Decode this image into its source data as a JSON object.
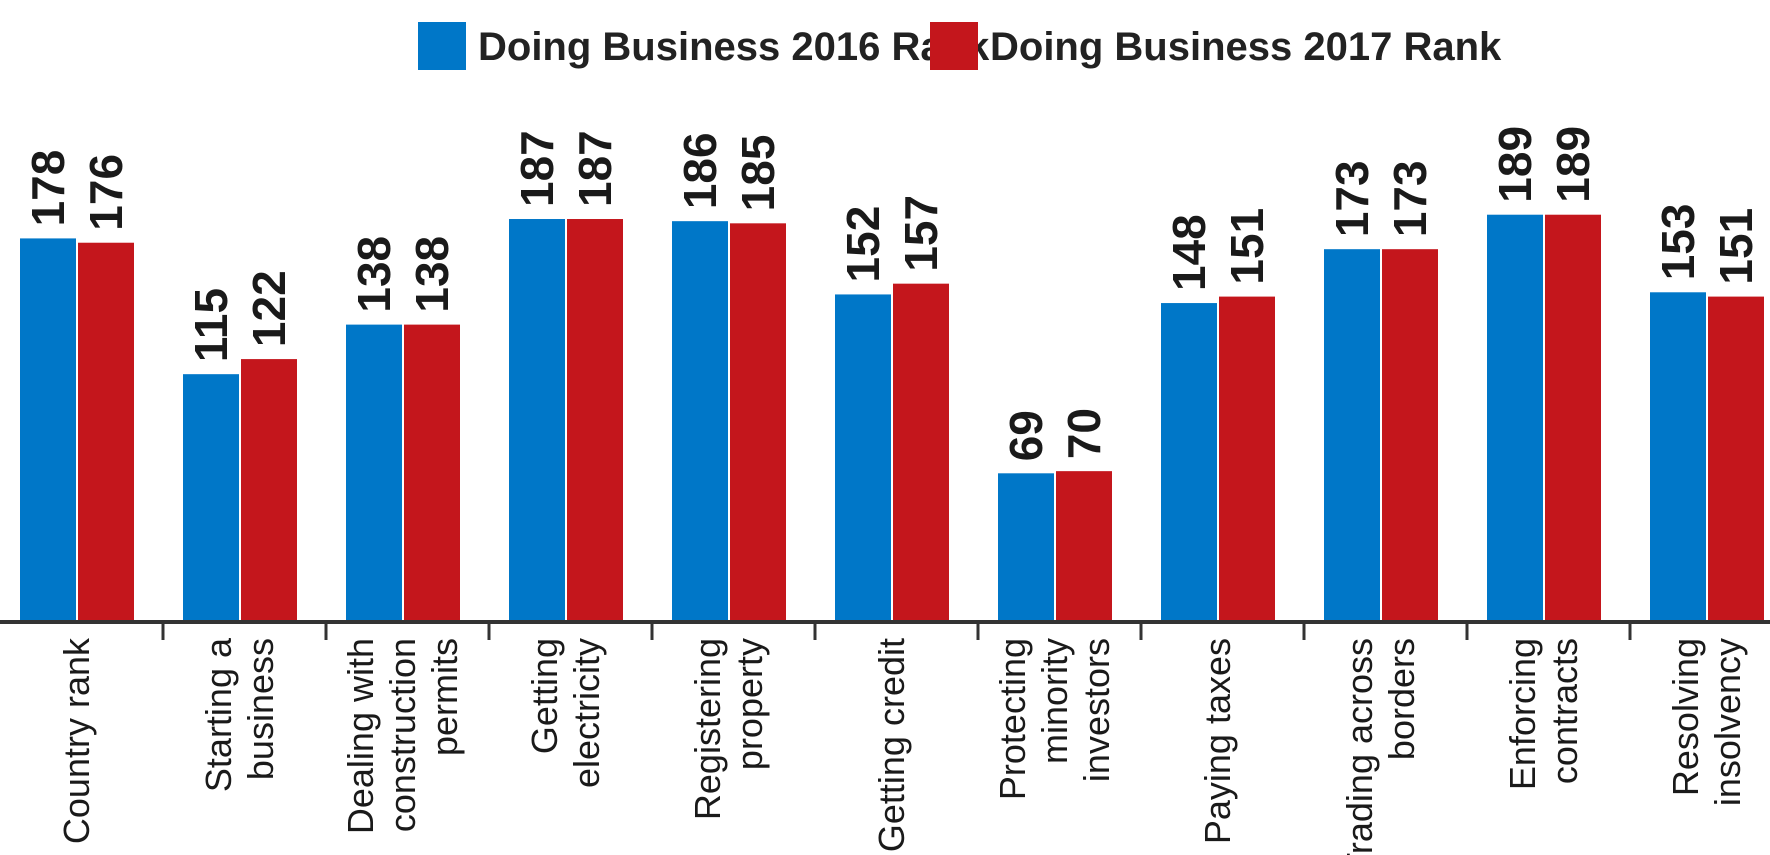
{
  "chart_data": {
    "type": "bar",
    "title": "",
    "xlabel": "",
    "ylabel": "",
    "ylim": [
      0,
      189
    ],
    "grid": false,
    "legend_position": "top-center",
    "categories": [
      [
        "Country rank"
      ],
      [
        "Starting a",
        "business"
      ],
      [
        "Dealing with",
        "construction",
        "permits"
      ],
      [
        "Getting",
        "electricity"
      ],
      [
        "Registering",
        "property"
      ],
      [
        "Getting credit"
      ],
      [
        "Protecting",
        "minority",
        "investors"
      ],
      [
        "Paying taxes"
      ],
      [
        "Trading across",
        "borders"
      ],
      [
        "Enforcing",
        "contracts"
      ],
      [
        "Resolving",
        "insolvency"
      ]
    ],
    "series": [
      {
        "name": "Doing Business 2016 Rank",
        "color": "#0077c8",
        "values": [
          178,
          115,
          138,
          187,
          186,
          152,
          69,
          148,
          173,
          189,
          153
        ]
      },
      {
        "name": "Doing Business 2017 Rank",
        "color": "#c4161c",
        "values": [
          176,
          122,
          138,
          187,
          185,
          157,
          70,
          151,
          173,
          189,
          151
        ]
      }
    ]
  }
}
